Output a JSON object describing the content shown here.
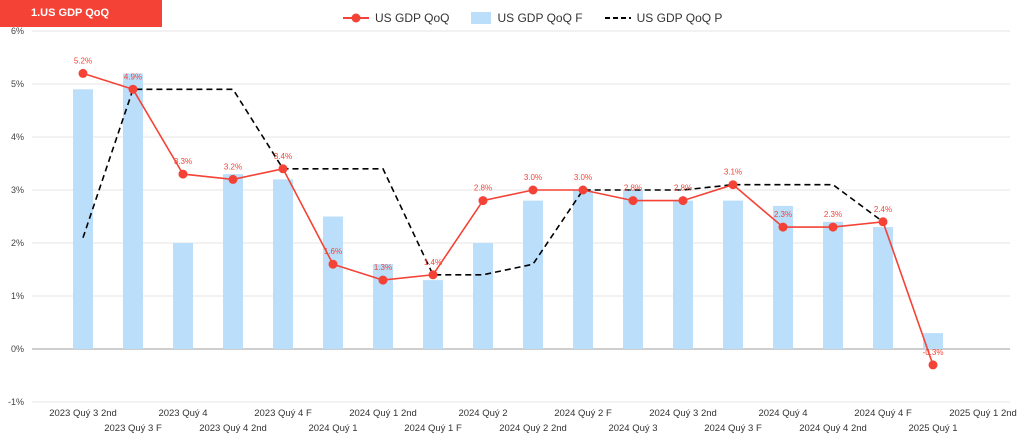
{
  "title": "1.US GDP QoQ",
  "legend": {
    "line_label": "US GDP QoQ",
    "bar_label": "US GDP QoQ F",
    "dash_label": "US GDP QoQ P"
  },
  "colors": {
    "line": "#f44336",
    "bar": "#bbdefb",
    "dash": "#000000",
    "title_bg": "#f44336"
  },
  "chart_data": {
    "type": "bar",
    "categories": [
      "2023 Quý 3 2nd",
      "2023 Quý 3 F",
      "2023 Quý 4",
      "2023 Quý 4 2nd",
      "2023 Quý 4 F",
      "2024 Quý 1",
      "2024 Quý 1 2nd",
      "2024 Quý 1 F",
      "2024 Quý 2",
      "2024 Quý 2 2nd",
      "2024 Quý 2 F",
      "2024 Quý 3",
      "2024 Quý 3 2nd",
      "2024 Quý 3 F",
      "2024 Quý 4",
      "2024 Quý 4 2nd",
      "2024 Quý 4 F",
      "2025 Quý 1",
      "2025 Quý 1 2nd"
    ],
    "series": [
      {
        "name": "US GDP QoQ",
        "kind": "line",
        "values": [
          5.2,
          4.9,
          3.3,
          3.2,
          3.4,
          1.6,
          1.3,
          1.4,
          2.8,
          3.0,
          3.0,
          2.8,
          2.8,
          3.1,
          2.3,
          2.3,
          2.4,
          -0.3,
          null
        ],
        "labels": [
          "5.2%",
          "4.9%",
          "3.3%",
          "3.2%",
          "3.4%",
          "1.6%",
          "1.3%",
          "1.4%",
          "2.8%",
          "3.0%",
          "3.0%",
          "2.8%",
          "2.8%",
          "3.1%",
          "2.3%",
          "2.3%",
          "2.4%",
          "-0.3%",
          ""
        ]
      },
      {
        "name": "US GDP QoQ F",
        "kind": "bar",
        "values": [
          4.9,
          5.2,
          2.0,
          3.3,
          3.2,
          2.5,
          1.6,
          1.3,
          2.0,
          2.8,
          3.0,
          3.0,
          2.8,
          2.8,
          2.7,
          2.4,
          2.3,
          0.3,
          null
        ]
      },
      {
        "name": "US GDP QoQ P",
        "kind": "dashed-step",
        "values": [
          2.1,
          4.9,
          4.9,
          4.9,
          3.4,
          3.4,
          3.4,
          1.4,
          1.4,
          1.6,
          3.0,
          3.0,
          3.0,
          3.1,
          3.1,
          3.1,
          2.4,
          null,
          null
        ]
      }
    ],
    "yticks": [
      "6%",
      "5%",
      "4%",
      "3%",
      "2%",
      "1%",
      "0%",
      "-1%"
    ],
    "ylim": [
      -1,
      6
    ],
    "grid": true,
    "legend_position": "top"
  }
}
